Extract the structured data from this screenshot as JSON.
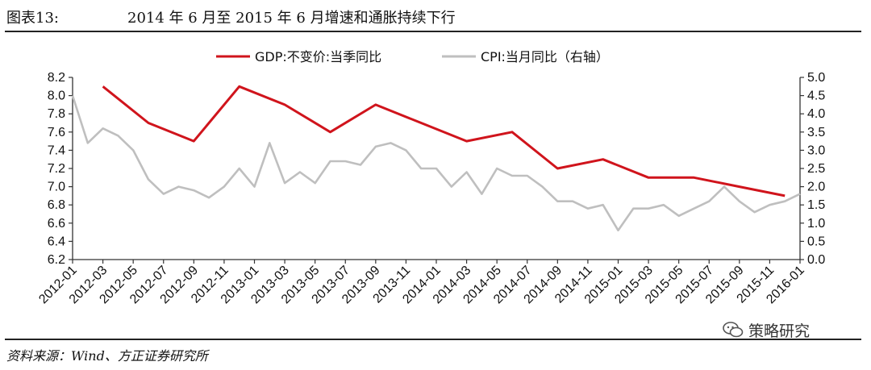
{
  "header": {
    "label": "图表13:",
    "title": "2014 年 6 月至 2015 年 6 月增速和通胀持续下行"
  },
  "source": "资料来源：Wind、方正证券研究所",
  "watermark": {
    "text": "策略研究",
    "icon": "wechat-icon"
  },
  "colors": {
    "gdp": "#d0141c",
    "cpi": "#bfbfbf",
    "axis": "#333333"
  },
  "chart_data": {
    "type": "line",
    "x_labels": [
      "2012-01",
      "2012-03",
      "2012-05",
      "2012-07",
      "2012-09",
      "2012-11",
      "2013-01",
      "2013-03",
      "2013-05",
      "2013-07",
      "2013-09",
      "2013-11",
      "2014-01",
      "2014-03",
      "2014-05",
      "2014-07",
      "2014-09",
      "2014-11",
      "2015-01",
      "2015-03",
      "2015-05",
      "2015-07",
      "2015-09",
      "2015-11",
      "2016-01"
    ],
    "x_range": [
      "2012-01",
      "2016-01"
    ],
    "y_left": {
      "min": 6.2,
      "max": 8.2,
      "ticks": [
        "6.2",
        "6.4",
        "6.6",
        "6.8",
        "7.0",
        "7.2",
        "7.4",
        "7.6",
        "7.8",
        "8.0",
        "8.2"
      ]
    },
    "y_right": {
      "min": 0.0,
      "max": 5.0,
      "ticks": [
        "0.0",
        "0.5",
        "1.0",
        "1.5",
        "2.0",
        "2.5",
        "3.0",
        "3.5",
        "4.0",
        "4.5",
        "5.0"
      ]
    },
    "legend_placement": "top",
    "series": [
      {
        "name": "GDP:不变价:当季同比",
        "axis": "left",
        "color": "#d0141c",
        "points": [
          {
            "x": "2012-03",
            "y": 8.1
          },
          {
            "x": "2012-06",
            "y": 7.7
          },
          {
            "x": "2012-09",
            "y": 7.5
          },
          {
            "x": "2012-12",
            "y": 8.1
          },
          {
            "x": "2013-03",
            "y": 7.9
          },
          {
            "x": "2013-06",
            "y": 7.6
          },
          {
            "x": "2013-09",
            "y": 7.9
          },
          {
            "x": "2013-12",
            "y": 7.7
          },
          {
            "x": "2014-03",
            "y": 7.5
          },
          {
            "x": "2014-06",
            "y": 7.6
          },
          {
            "x": "2014-09",
            "y": 7.2
          },
          {
            "x": "2014-12",
            "y": 7.3
          },
          {
            "x": "2015-03",
            "y": 7.1
          },
          {
            "x": "2015-06",
            "y": 7.1
          },
          {
            "x": "2015-09",
            "y": 7.0
          },
          {
            "x": "2015-12",
            "y": 6.9
          }
        ]
      },
      {
        "name": "CPI:当月同比（右轴）",
        "axis": "right",
        "color": "#bfbfbf",
        "points": [
          {
            "x": "2012-01",
            "y": 4.5
          },
          {
            "x": "2012-02",
            "y": 3.2
          },
          {
            "x": "2012-03",
            "y": 3.6
          },
          {
            "x": "2012-04",
            "y": 3.4
          },
          {
            "x": "2012-05",
            "y": 3.0
          },
          {
            "x": "2012-06",
            "y": 2.2
          },
          {
            "x": "2012-07",
            "y": 1.8
          },
          {
            "x": "2012-08",
            "y": 2.0
          },
          {
            "x": "2012-09",
            "y": 1.9
          },
          {
            "x": "2012-10",
            "y": 1.7
          },
          {
            "x": "2012-11",
            "y": 2.0
          },
          {
            "x": "2012-12",
            "y": 2.5
          },
          {
            "x": "2013-01",
            "y": 2.0
          },
          {
            "x": "2013-02",
            "y": 3.2
          },
          {
            "x": "2013-03",
            "y": 2.1
          },
          {
            "x": "2013-04",
            "y": 2.4
          },
          {
            "x": "2013-05",
            "y": 2.1
          },
          {
            "x": "2013-06",
            "y": 2.7
          },
          {
            "x": "2013-07",
            "y": 2.7
          },
          {
            "x": "2013-08",
            "y": 2.6
          },
          {
            "x": "2013-09",
            "y": 3.1
          },
          {
            "x": "2013-10",
            "y": 3.2
          },
          {
            "x": "2013-11",
            "y": 3.0
          },
          {
            "x": "2013-12",
            "y": 2.5
          },
          {
            "x": "2014-01",
            "y": 2.5
          },
          {
            "x": "2014-02",
            "y": 2.0
          },
          {
            "x": "2014-03",
            "y": 2.4
          },
          {
            "x": "2014-04",
            "y": 1.8
          },
          {
            "x": "2014-05",
            "y": 2.5
          },
          {
            "x": "2014-06",
            "y": 2.3
          },
          {
            "x": "2014-07",
            "y": 2.3
          },
          {
            "x": "2014-08",
            "y": 2.0
          },
          {
            "x": "2014-09",
            "y": 1.6
          },
          {
            "x": "2014-10",
            "y": 1.6
          },
          {
            "x": "2014-11",
            "y": 1.4
          },
          {
            "x": "2014-12",
            "y": 1.5
          },
          {
            "x": "2015-01",
            "y": 0.8
          },
          {
            "x": "2015-02",
            "y": 1.4
          },
          {
            "x": "2015-03",
            "y": 1.4
          },
          {
            "x": "2015-04",
            "y": 1.5
          },
          {
            "x": "2015-05",
            "y": 1.2
          },
          {
            "x": "2015-06",
            "y": 1.4
          },
          {
            "x": "2015-07",
            "y": 1.6
          },
          {
            "x": "2015-08",
            "y": 2.0
          },
          {
            "x": "2015-09",
            "y": 1.6
          },
          {
            "x": "2015-10",
            "y": 1.3
          },
          {
            "x": "2015-11",
            "y": 1.5
          },
          {
            "x": "2015-12",
            "y": 1.6
          },
          {
            "x": "2016-01",
            "y": 1.8
          }
        ]
      }
    ]
  }
}
